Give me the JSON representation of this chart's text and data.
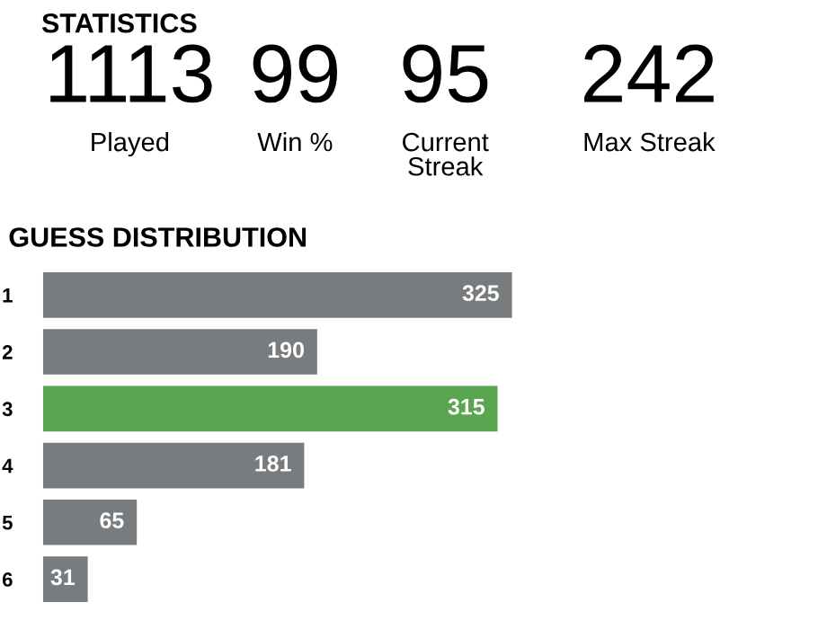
{
  "chart_data": [
    {
      "type": "other",
      "title": "STATISTICS",
      "annotations": [
        "1113",
        "Played",
        "99",
        "Win %",
        "95",
        "Current\nStreak",
        "242",
        "Max Streak"
      ]
    },
    {
      "type": "bar",
      "orientation": "horizontal",
      "title": "GUESS DISTRIBUTION",
      "categories": [
        "1",
        "2",
        "3",
        "4",
        "5",
        "6"
      ],
      "values": [
        325,
        190,
        315,
        181,
        65,
        31
      ],
      "colors": [
        "#787c7e",
        "#787c7e",
        "#5aa552",
        "#787c7e",
        "#787c7e",
        "#787c7e"
      ],
      "data_labels": true,
      "grid": false,
      "legend": false
    }
  ]
}
